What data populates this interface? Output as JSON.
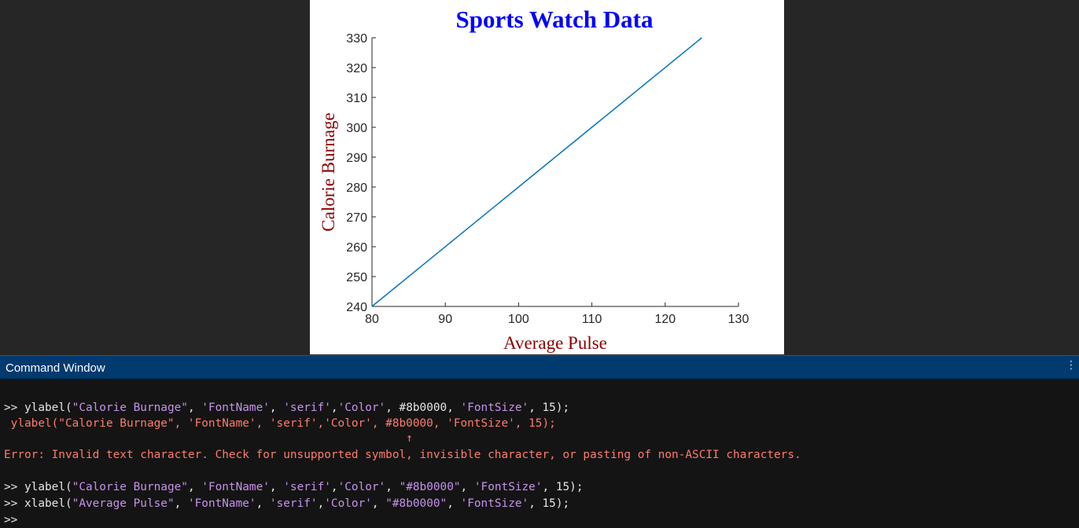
{
  "chart_data": {
    "type": "line",
    "title": "Sports Watch Data",
    "title_color": "#0000ff",
    "xlabel": "Average Pulse",
    "ylabel": "Calorie Burnage",
    "label_color": "#8b0000",
    "line_color": "#0072bd",
    "x": [
      80,
      125
    ],
    "y": [
      240,
      330
    ],
    "xlim": [
      80,
      130
    ],
    "ylim": [
      240,
      330
    ],
    "xticks": [
      80,
      90,
      100,
      110,
      120,
      130
    ],
    "yticks": [
      240,
      250,
      260,
      270,
      280,
      290,
      300,
      310,
      320,
      330
    ],
    "grid": false
  },
  "command_window": {
    "title": "Command Window",
    "menu_glyph": "⋮",
    "lines": [
      {
        "kind": "cmd",
        "prompt": ">> ",
        "parts": [
          [
            "plain",
            "ylabel("
          ],
          [
            "str",
            "\"Calorie Burnage\""
          ],
          [
            "plain",
            ", "
          ],
          [
            "str",
            "'FontName'"
          ],
          [
            "plain",
            ", "
          ],
          [
            "str",
            "'serif'"
          ],
          [
            "plain",
            ","
          ],
          [
            "str",
            "'Color'"
          ],
          [
            "plain",
            ", #8b0000, "
          ],
          [
            "str",
            "'FontSize'"
          ],
          [
            "plain",
            ", 15);"
          ]
        ]
      },
      {
        "kind": "err",
        "text": " ylabel(\"Calorie Burnage\", 'FontName', 'serif','Color', #8b0000, 'FontSize', 15);"
      },
      {
        "kind": "err",
        "text": "                                                           ↑"
      },
      {
        "kind": "err",
        "text": "Error: Invalid text character. Check for unsupported symbol, invisible character, or pasting of non-ASCII characters."
      },
      {
        "kind": "blank",
        "text": ""
      },
      {
        "kind": "cmd",
        "prompt": ">> ",
        "parts": [
          [
            "plain",
            "ylabel("
          ],
          [
            "str",
            "\"Calorie Burnage\""
          ],
          [
            "plain",
            ", "
          ],
          [
            "str",
            "'FontName'"
          ],
          [
            "plain",
            ", "
          ],
          [
            "str",
            "'serif'"
          ],
          [
            "plain",
            ","
          ],
          [
            "str",
            "'Color'"
          ],
          [
            "plain",
            ", "
          ],
          [
            "str",
            "\"#8b0000\""
          ],
          [
            "plain",
            ", "
          ],
          [
            "str",
            "'FontSize'"
          ],
          [
            "plain",
            ", 15);"
          ]
        ]
      },
      {
        "kind": "cmd",
        "prompt": ">> ",
        "parts": [
          [
            "plain",
            "xlabel("
          ],
          [
            "str",
            "\"Average Pulse\""
          ],
          [
            "plain",
            ", "
          ],
          [
            "str",
            "'FontName'"
          ],
          [
            "plain",
            ", "
          ],
          [
            "str",
            "'serif'"
          ],
          [
            "plain",
            ","
          ],
          [
            "str",
            "'Color'"
          ],
          [
            "plain",
            ", "
          ],
          [
            "str",
            "\"#8b0000\""
          ],
          [
            "plain",
            ", "
          ],
          [
            "str",
            "'FontSize'"
          ],
          [
            "plain",
            ", 15);"
          ]
        ]
      },
      {
        "kind": "prompt",
        "prompt": ">> "
      }
    ]
  }
}
